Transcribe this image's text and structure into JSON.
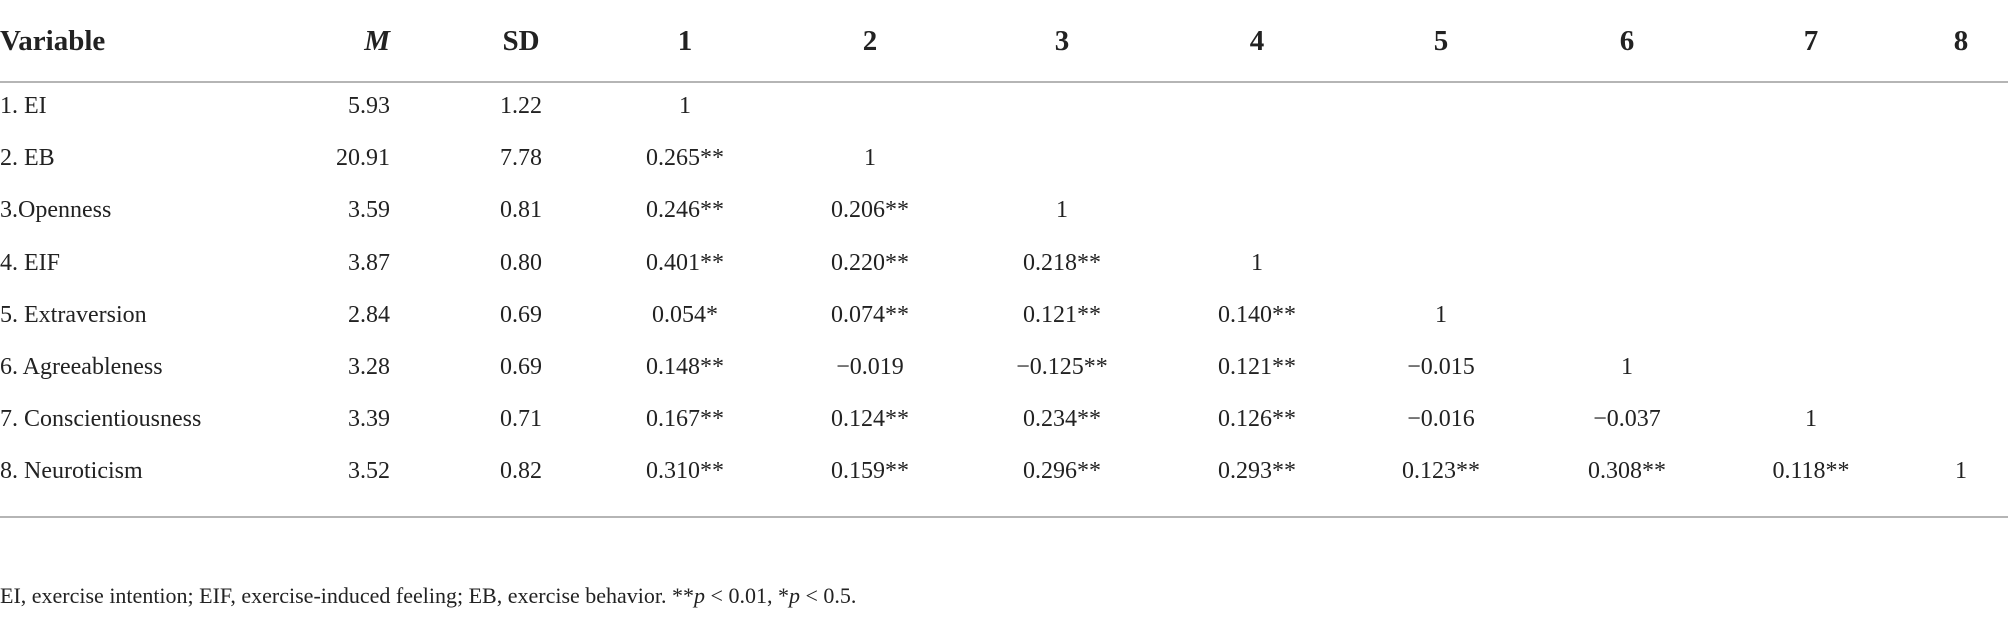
{
  "table": {
    "header": [
      "Variable",
      "M",
      "SD",
      "1",
      "2",
      "3",
      "4",
      "5",
      "6",
      "7",
      "8"
    ],
    "rows": [
      {
        "label": "1. EI",
        "m": "5.93",
        "sd": "1.22",
        "cells": [
          "1"
        ]
      },
      {
        "label": "2. EB",
        "m": "20.91",
        "sd": "7.78",
        "cells": [
          "0.265**",
          "1"
        ]
      },
      {
        "label": "3.Openness",
        "m": "3.59",
        "sd": "0.81",
        "cells": [
          "0.246**",
          "0.206**",
          "1"
        ]
      },
      {
        "label": "4. EIF",
        "m": "3.87",
        "sd": "0.80",
        "cells": [
          "0.401**",
          "0.220**",
          "0.218**",
          "1"
        ]
      },
      {
        "label": "5. Extraversion",
        "m": "2.84",
        "sd": "0.69",
        "cells": [
          "0.054*",
          "0.074**",
          "0.121**",
          "0.140**",
          "1"
        ]
      },
      {
        "label": "6. Agreeableness",
        "m": "3.28",
        "sd": "0.69",
        "cells": [
          "0.148**",
          "−0.019",
          "−0.125**",
          "0.121**",
          "−0.015",
          "1"
        ]
      },
      {
        "label": "7. Conscientiousness",
        "m": "3.39",
        "sd": "0.71",
        "cells": [
          "0.167**",
          "0.124**",
          "0.234**",
          "0.126**",
          "−0.016",
          "−0.037",
          "1"
        ]
      },
      {
        "label": "8. Neuroticism",
        "m": "3.52",
        "sd": "0.82",
        "cells": [
          "0.310**",
          "0.159**",
          "0.296**",
          "0.293**",
          "0.123**",
          "0.308**",
          "0.118**",
          "1"
        ]
      }
    ],
    "footnote": [
      "EI, exercise intention; EIF, exercise-induced feeling; EB, exercise behavior. **",
      "p",
      " < 0.01, *",
      "p",
      " < 0.5."
    ]
  }
}
